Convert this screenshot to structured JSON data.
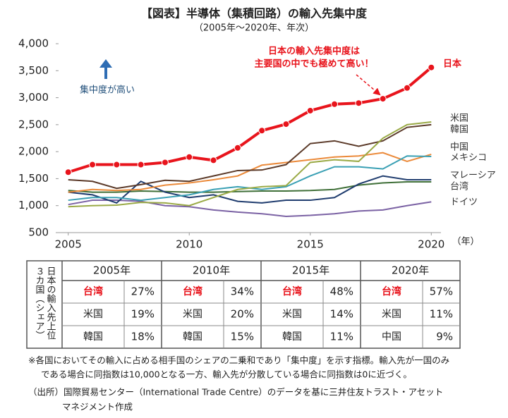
{
  "chart_data": {
    "type": "line",
    "title": "【図表】半導体（集積回路）の輸入先集中度",
    "subtitle": "（2005年～2020年、年次）",
    "x_unit": "（年）",
    "annotation": [
      "日本の輸入先集中度は",
      "主要国の中でも極めて高い！"
    ],
    "arrow_label": "集中度が高い",
    "x": [
      2005,
      2006,
      2007,
      2008,
      2009,
      2010,
      2011,
      2012,
      2013,
      2014,
      2015,
      2016,
      2017,
      2018,
      2019,
      2020
    ],
    "xlim": [
      2004.6,
      2020.4
    ],
    "xticks": [
      2005,
      2010,
      2015,
      2020
    ],
    "ylim": [
      500,
      4000
    ],
    "yticks": [
      {
        "value": 500,
        "label": "500"
      },
      {
        "value": 1000,
        "label": "1,000"
      },
      {
        "value": 1500,
        "label": "1,500"
      },
      {
        "value": 2000,
        "label": "2,000"
      },
      {
        "value": 2500,
        "label": "2,500"
      },
      {
        "value": 3000,
        "label": "3,000"
      },
      {
        "value": 3500,
        "label": "3,500"
      },
      {
        "value": 4000,
        "label": "4,000"
      }
    ],
    "series": [
      {
        "name": "日本",
        "color": "#e8141c",
        "values": [
          1620,
          1760,
          1760,
          1760,
          1800,
          1900,
          1840,
          2070,
          2390,
          2510,
          2760,
          2880,
          2900,
          2980,
          3180,
          3560
        ]
      },
      {
        "name": "米国",
        "color": "#9aaa46",
        "values": [
          980,
          1000,
          1010,
          1060,
          1050,
          1000,
          1150,
          1300,
          1350,
          1370,
          1800,
          1850,
          1820,
          2250,
          2500,
          2550
        ]
      },
      {
        "name": "韓国",
        "color": "#5b3a29",
        "values": [
          1480,
          1450,
          1320,
          1390,
          1470,
          1450,
          1550,
          1650,
          1660,
          1760,
          2150,
          2200,
          2100,
          2200,
          2450,
          2500
        ]
      },
      {
        "name": "中国",
        "color": "#3aa0b4",
        "values": [
          1100,
          1150,
          1150,
          1100,
          1150,
          1200,
          1300,
          1350,
          1300,
          1350,
          1550,
          1720,
          1720,
          1680,
          1920,
          1910
        ]
      },
      {
        "name": "メキシコ",
        "color": "#eb8a3a",
        "values": [
          1250,
          1300,
          1280,
          1300,
          1380,
          1420,
          1480,
          1550,
          1750,
          1800,
          1850,
          1900,
          1920,
          1980,
          1820,
          1950
        ]
      },
      {
        "name": "マレーシア",
        "color": "#1f3c6e",
        "values": [
          1250,
          1200,
          1050,
          1450,
          1250,
          1150,
          1200,
          1080,
          1050,
          1100,
          1100,
          1150,
          1400,
          1550,
          1480,
          1480
        ]
      },
      {
        "name": "台湾",
        "color": "#3f6f38",
        "values": [
          1280,
          1250,
          1250,
          1270,
          1260,
          1250,
          1250,
          1260,
          1270,
          1270,
          1280,
          1300,
          1380,
          1420,
          1440,
          1440
        ]
      },
      {
        "name": "ドイツ",
        "color": "#7b62a4",
        "values": [
          1020,
          1100,
          1100,
          1080,
          1000,
          980,
          920,
          880,
          850,
          800,
          820,
          850,
          900,
          920,
          1000,
          1070
        ]
      }
    ]
  },
  "table": {
    "row_header": [
      "日本の輸入先上位",
      "３カ国（シェア）"
    ],
    "columns": [
      "2005年",
      "2010年",
      "2015年",
      "2020年"
    ],
    "rows": [
      [
        [
          "台湾",
          "27%"
        ],
        [
          "台湾",
          "34%"
        ],
        [
          "台湾",
          "48%"
        ],
        [
          "台湾",
          "57%"
        ]
      ],
      [
        [
          "米国",
          "19%"
        ],
        [
          "米国",
          "20%"
        ],
        [
          "米国",
          "14%"
        ],
        [
          "米国",
          "11%"
        ]
      ],
      [
        [
          "韓国",
          "18%"
        ],
        [
          "韓国",
          "15%"
        ],
        [
          "韓国",
          "11%"
        ],
        [
          "中国",
          "9%"
        ]
      ]
    ]
  },
  "notes": [
    "※各国においてその輸入に占める相手国のシェアの二乗和であり「集中度」を示す指標。輸入先が一国のみ",
    "である場合に同指数は10,000となる一方、輸入先が分散している場合に同指数は0に近づく。",
    "（出所）国際貿易センター（International Trade Centre）のデータを基に三井住友トラスト・アセット",
    "マネジメント作成"
  ]
}
